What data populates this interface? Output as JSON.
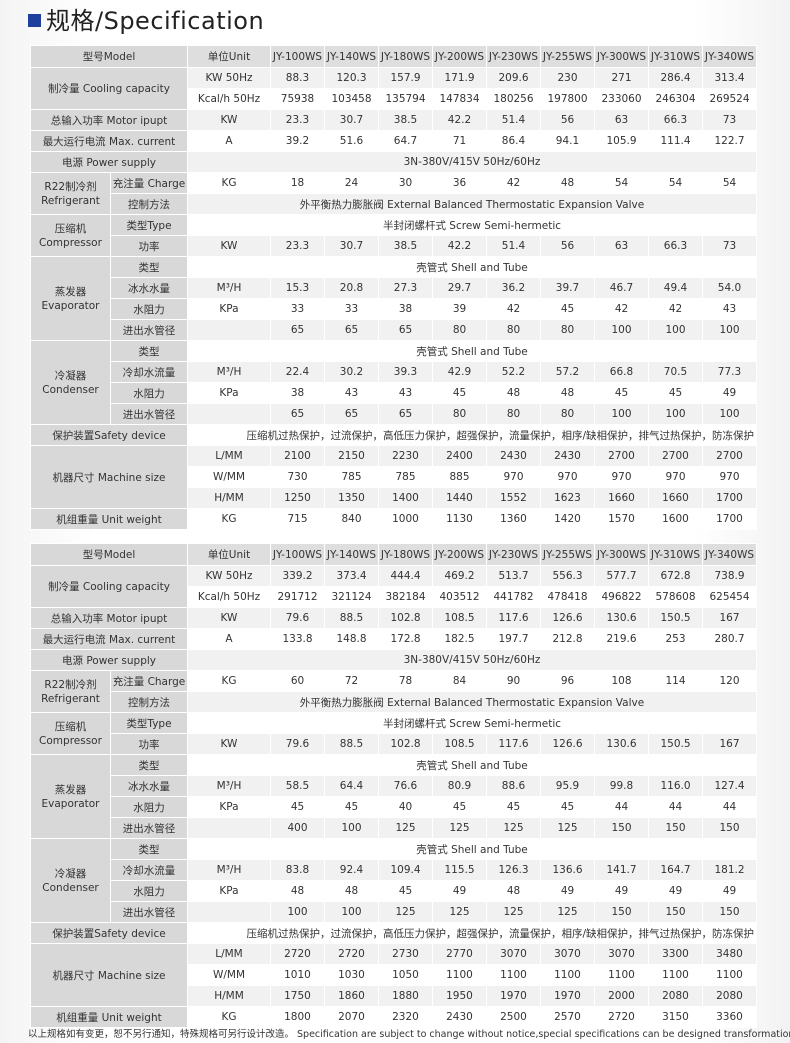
{
  "title": "规格/Specification",
  "accent_color": "#1f3f9f",
  "labels": {
    "model": "型号Model",
    "unit": "单位Unit",
    "cooling": "制冷量 Cooling capacity",
    "motor": "总输入功率 Motor ipupt",
    "current": "最大运行电流 Max. current",
    "power_supply": "电源 Power supply",
    "refrigerant": "R22制冷剂 Refrigerant",
    "charge": "充注量 Charge",
    "control": "控制方法",
    "compressor": "压缩机 Compressor",
    "comp_type": "类型Type",
    "comp_power": "功率",
    "evaporator": "蒸发器 Evaporator",
    "type": "类型",
    "chilled_flow": "冰水水量",
    "resistance": "水阻力",
    "pipe": "进出水管径",
    "condenser": "冷凝器 Condenser",
    "cooling_flow": "冷却水流量",
    "safety": "保护装置Safety device",
    "size": "机器尺寸 Machine size",
    "weight": "机组重量 Unit weight"
  },
  "units": {
    "kw_50hz": "KW 50Hz",
    "kcal_50hz": "Kcal/h 50Hz",
    "kw": "KW",
    "a": "A",
    "kg": "KG",
    "m3h": "M³/H",
    "kpa": "KPa",
    "l": "L/MM",
    "w": "W/MM",
    "h": "H/MM"
  },
  "shared": {
    "power_supply": "3N-380V/415V 50Hz/60Hz",
    "control": "外平衡热力膨胀阀 External Balanced Thermostatic Expansion Valve",
    "comp_type": "半封闭螺杆式 Screw Semi-hermetic",
    "shell_tube": "壳管式 Shell and Tube",
    "safety": "压缩机过热保护，过流保护，高低压力保护，超强保护，流量保护，相序/缺相保护，排气过热保护，防冻保护"
  },
  "tables": [
    {
      "models": [
        "JY-100WS",
        "JY-140WS",
        "JY-180WS",
        "JY-200WS",
        "JY-230WS",
        "JY-255WS",
        "JY-300WS",
        "JY-310WS",
        "JY-340WS"
      ],
      "cooling_kw": [
        "88.3",
        "120.3",
        "157.9",
        "171.9",
        "209.6",
        "230",
        "271",
        "286.4",
        "313.4"
      ],
      "cooling_kcal": [
        "75938",
        "103458",
        "135794",
        "147834",
        "180256",
        "197800",
        "233060",
        "246304",
        "269524"
      ],
      "motor": [
        "23.3",
        "30.7",
        "38.5",
        "42.2",
        "51.4",
        "56",
        "63",
        "66.3",
        "73"
      ],
      "current": [
        "39.2",
        "51.6",
        "64.7",
        "71",
        "86.4",
        "94.1",
        "105.9",
        "111.4",
        "122.7"
      ],
      "charge": [
        "18",
        "24",
        "30",
        "36",
        "42",
        "48",
        "54",
        "54",
        "54"
      ],
      "comp_power": [
        "23.3",
        "30.7",
        "38.5",
        "42.2",
        "51.4",
        "56",
        "63",
        "66.3",
        "73"
      ],
      "evap_flow": [
        "15.3",
        "20.8",
        "27.3",
        "29.7",
        "36.2",
        "39.7",
        "46.7",
        "49.4",
        "54.0"
      ],
      "evap_kpa": [
        "33",
        "33",
        "38",
        "39",
        "42",
        "45",
        "42",
        "42",
        "43"
      ],
      "evap_pipe": [
        "65",
        "65",
        "65",
        "80",
        "80",
        "80",
        "100",
        "100",
        "100"
      ],
      "cond_flow": [
        "22.4",
        "30.2",
        "39.3",
        "42.9",
        "52.2",
        "57.2",
        "66.8",
        "70.5",
        "77.3"
      ],
      "cond_kpa": [
        "38",
        "43",
        "43",
        "45",
        "48",
        "48",
        "45",
        "45",
        "49"
      ],
      "cond_pipe": [
        "65",
        "65",
        "65",
        "80",
        "80",
        "80",
        "100",
        "100",
        "100"
      ],
      "size_l": [
        "2100",
        "2150",
        "2230",
        "2400",
        "2430",
        "2430",
        "2700",
        "2700",
        "2700"
      ],
      "size_w": [
        "730",
        "785",
        "785",
        "885",
        "970",
        "970",
        "970",
        "970",
        "970"
      ],
      "size_h": [
        "1250",
        "1350",
        "1400",
        "1440",
        "1552",
        "1623",
        "1660",
        "1660",
        "1700"
      ],
      "weight": [
        "715",
        "840",
        "1000",
        "1130",
        "1360",
        "1420",
        "1570",
        "1600",
        "1700"
      ]
    },
    {
      "models": [
        "JY-100WS",
        "JY-140WS",
        "JY-180WS",
        "JY-200WS",
        "JY-230WS",
        "JY-255WS",
        "JY-300WS",
        "JY-310WS",
        "JY-340WS"
      ],
      "cooling_kw": [
        "339.2",
        "373.4",
        "444.4",
        "469.2",
        "513.7",
        "556.3",
        "577.7",
        "672.8",
        "738.9"
      ],
      "cooling_kcal": [
        "291712",
        "321124",
        "382184",
        "403512",
        "441782",
        "478418",
        "496822",
        "578608",
        "625454"
      ],
      "motor": [
        "79.6",
        "88.5",
        "102.8",
        "108.5",
        "117.6",
        "126.6",
        "130.6",
        "150.5",
        "167"
      ],
      "current": [
        "133.8",
        "148.8",
        "172.8",
        "182.5",
        "197.7",
        "212.8",
        "219.6",
        "253",
        "280.7"
      ],
      "charge": [
        "60",
        "72",
        "78",
        "84",
        "90",
        "96",
        "108",
        "114",
        "120"
      ],
      "comp_power": [
        "79.6",
        "88.5",
        "102.8",
        "108.5",
        "117.6",
        "126.6",
        "130.6",
        "150.5",
        "167"
      ],
      "evap_flow": [
        "58.5",
        "64.4",
        "76.6",
        "80.9",
        "88.6",
        "95.9",
        "99.8",
        "116.0",
        "127.4"
      ],
      "evap_kpa": [
        "45",
        "45",
        "40",
        "45",
        "45",
        "45",
        "44",
        "44",
        "44"
      ],
      "evap_pipe": [
        "400",
        "100",
        "125",
        "125",
        "125",
        "125",
        "150",
        "150",
        "150"
      ],
      "cond_flow": [
        "83.8",
        "92.4",
        "109.4",
        "115.5",
        "126.3",
        "136.6",
        "141.7",
        "164.7",
        "181.2"
      ],
      "cond_kpa": [
        "48",
        "48",
        "45",
        "49",
        "48",
        "49",
        "49",
        "49",
        "49"
      ],
      "cond_pipe": [
        "100",
        "100",
        "125",
        "125",
        "125",
        "125",
        "150",
        "150",
        "150"
      ],
      "size_l": [
        "2720",
        "2720",
        "2730",
        "2770",
        "3070",
        "3070",
        "3070",
        "3300",
        "3480"
      ],
      "size_w": [
        "1010",
        "1030",
        "1050",
        "1100",
        "1100",
        "1100",
        "1100",
        "1100",
        "1100"
      ],
      "size_h": [
        "1750",
        "1860",
        "1880",
        "1950",
        "1970",
        "1970",
        "2000",
        "2080",
        "2080"
      ],
      "weight": [
        "1800",
        "2070",
        "2320",
        "2430",
        "2500",
        "2570",
        "2720",
        "3150",
        "3360"
      ]
    }
  ],
  "footer": "以上规格如有变更，恕不另行通知，特殊规格可另行设计改造。 Specification are subject to change without notice,special specifications can be designed transformation."
}
